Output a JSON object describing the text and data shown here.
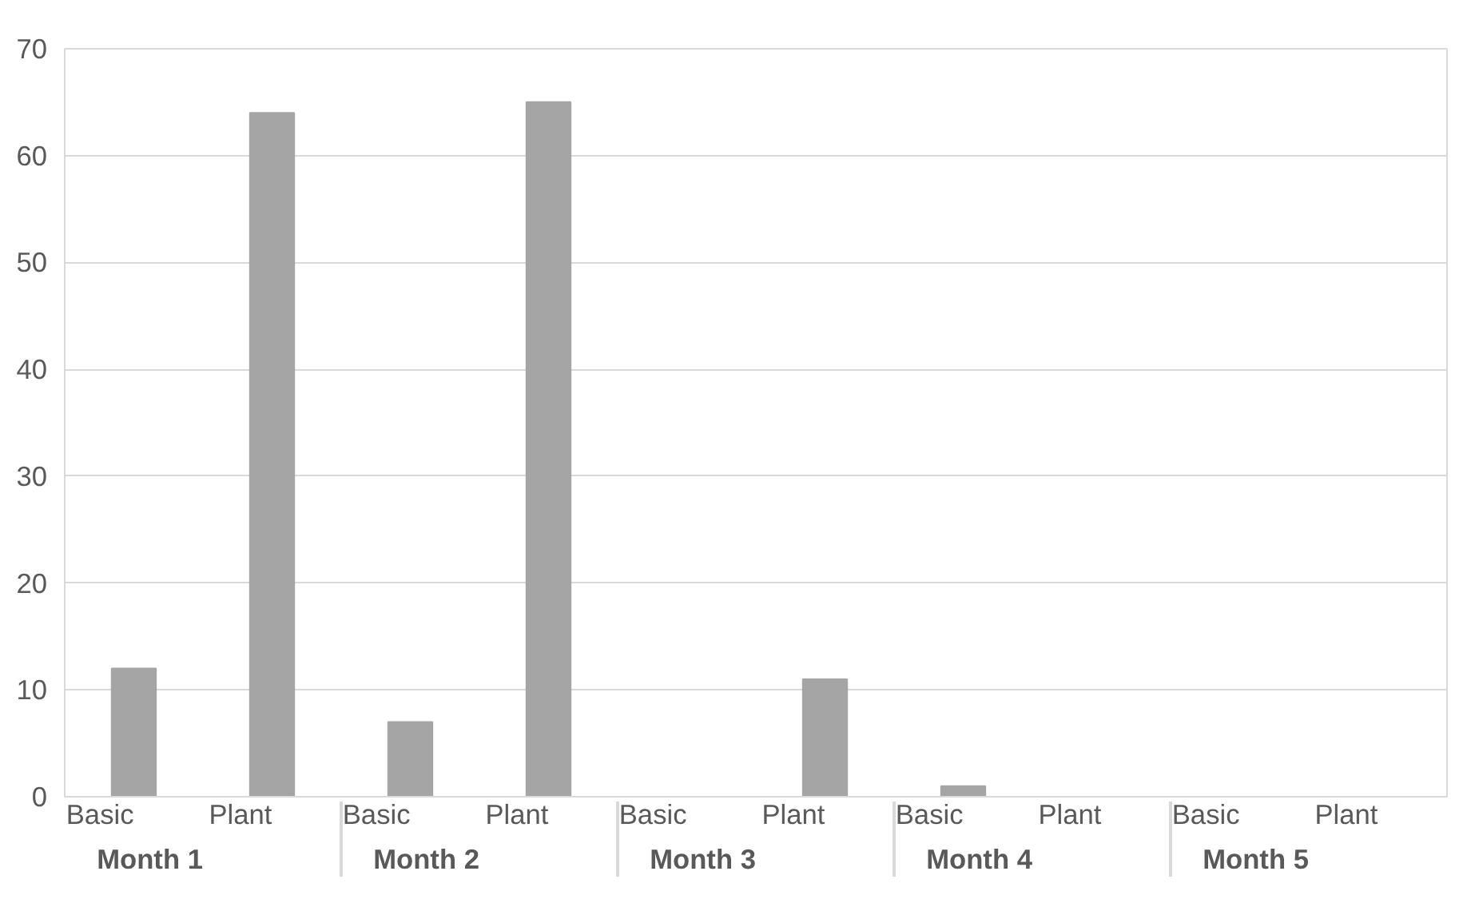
{
  "chart_data": {
    "type": "bar",
    "categories": [
      "Basic",
      "Plant",
      "Basic",
      "Plant",
      "Basic",
      "Plant",
      "Basic",
      "Plant",
      "Basic",
      "Plant"
    ],
    "annotations": [
      "Month 1",
      "Month 2",
      "Month 3",
      "Month 4",
      "Month 5"
    ],
    "values": [
      12,
      64,
      7,
      65,
      0,
      11,
      1,
      0,
      0,
      0
    ],
    "color": "#a5a5a5",
    "ylim": [
      0,
      70
    ],
    "yticks": [
      0,
      10,
      20,
      30,
      40,
      50,
      60,
      70
    ],
    "grid": "y"
  }
}
